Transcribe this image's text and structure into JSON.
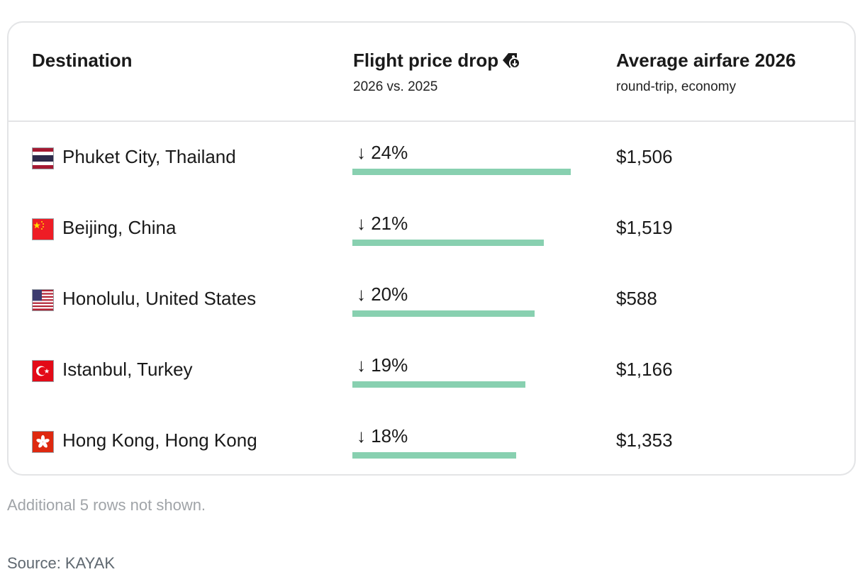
{
  "table": {
    "headers": {
      "destination": "Destination",
      "drop": "Flight price drop",
      "drop_sub": "2026 vs. 2025",
      "fare": "Average airfare 2026",
      "fare_sub": "round-trip, economy",
      "drop_icon": "price-tag-down-icon"
    },
    "rows": [
      {
        "flag": "thailand-flag-icon",
        "destination": "Phuket City, Thailand",
        "drop": "↓ 24%",
        "drop_pct": 24,
        "fare": "$1,506"
      },
      {
        "flag": "china-flag-icon",
        "destination": "Beijing, China",
        "drop": "↓ 21%",
        "drop_pct": 21,
        "fare": "$1,519"
      },
      {
        "flag": "united-states-flag-icon",
        "destination": "Honolulu, United States",
        "drop": "↓ 20%",
        "drop_pct": 20,
        "fare": "$588"
      },
      {
        "flag": "turkey-flag-icon",
        "destination": "Istanbul, Turkey",
        "drop": "↓ 19%",
        "drop_pct": 19,
        "fare": "$1,166"
      },
      {
        "flag": "hong-kong-flag-icon",
        "destination": "Hong Kong, Hong Kong",
        "drop": "↓ 18%",
        "drop_pct": 18,
        "fare": "$1,353"
      }
    ],
    "bar_color": "#88d0b0",
    "bar_max_pct": 24
  },
  "footnote": "Additional 5 rows not shown.",
  "source": "Source: KAYAK"
}
